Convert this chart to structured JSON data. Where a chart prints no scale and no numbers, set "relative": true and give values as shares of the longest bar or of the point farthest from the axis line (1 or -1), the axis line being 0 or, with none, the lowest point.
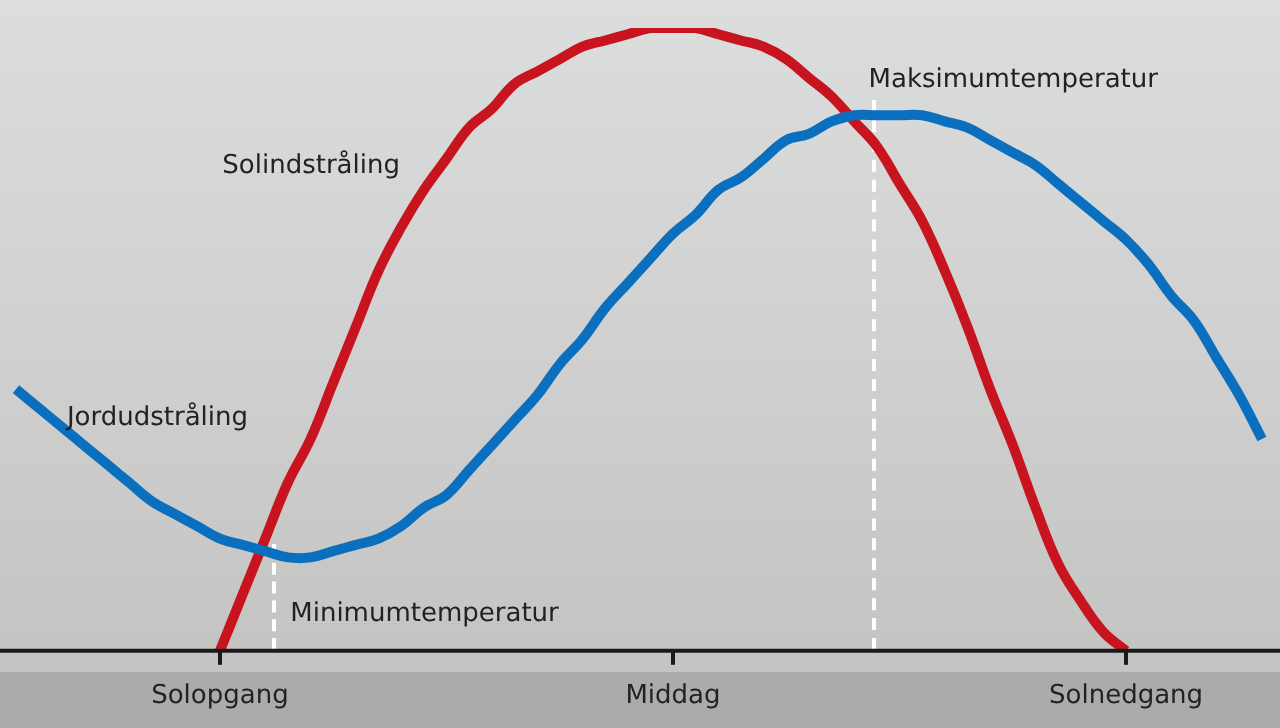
{
  "chart_data": {
    "type": "line",
    "relative": true,
    "categories": [
      null,
      null,
      null,
      null,
      null,
      null,
      null,
      null,
      null,
      "Solopgang",
      null,
      null,
      null,
      null,
      null,
      null,
      null,
      null,
      null,
      null,
      null,
      null,
      null,
      null,
      null,
      null,
      null,
      null,
      null,
      "Middag",
      null,
      null,
      null,
      null,
      null,
      null,
      null,
      null,
      null,
      null,
      null,
      null,
      null,
      null,
      null,
      null,
      null,
      null,
      null,
      "Solnedgang",
      null,
      null,
      null,
      null,
      null,
      null
    ],
    "series": [
      {
        "name": "Jordudstråling",
        "color": "#0a6fbe",
        "values": [
          0.42,
          0.39,
          0.36,
          0.33,
          0.3,
          0.27,
          0.24,
          0.22,
          0.2,
          0.18,
          0.17,
          0.16,
          0.15,
          0.15,
          0.16,
          0.17,
          0.18,
          0.2,
          0.23,
          0.25,
          0.29,
          0.33,
          0.37,
          0.41,
          0.46,
          0.5,
          0.55,
          0.59,
          0.63,
          0.67,
          0.7,
          0.74,
          0.76,
          0.79,
          0.82,
          0.83,
          0.85,
          0.86,
          0.86,
          0.86,
          0.86,
          0.85,
          0.84,
          0.82,
          0.8,
          0.78,
          0.75,
          0.72,
          0.69,
          0.66,
          0.62,
          0.57,
          0.53,
          0.47,
          0.41,
          0.34
        ]
      },
      {
        "name": "Solindstråling",
        "color": "#c8141e",
        "values": [
          null,
          null,
          null,
          null,
          null,
          null,
          null,
          null,
          null,
          0,
          0.09,
          0.18,
          0.27,
          0.34,
          0.43,
          0.52,
          0.61,
          0.68,
          0.74,
          0.79,
          0.84,
          0.87,
          0.91,
          0.93,
          0.95,
          0.97,
          0.98,
          0.99,
          1,
          1,
          1,
          0.99,
          0.98,
          0.97,
          0.95,
          0.92,
          0.89,
          0.85,
          0.81,
          0.75,
          0.69,
          0.61,
          0.52,
          0.42,
          0.33,
          0.23,
          0.14,
          0.08,
          0.03,
          0,
          null,
          null,
          null,
          null,
          null,
          null
        ]
      }
    ],
    "annotations": [
      "Minimumtemperatur",
      "Maksimumtemperatur"
    ],
    "legend": false,
    "marker": "none",
    "line_style": "solid"
  }
}
